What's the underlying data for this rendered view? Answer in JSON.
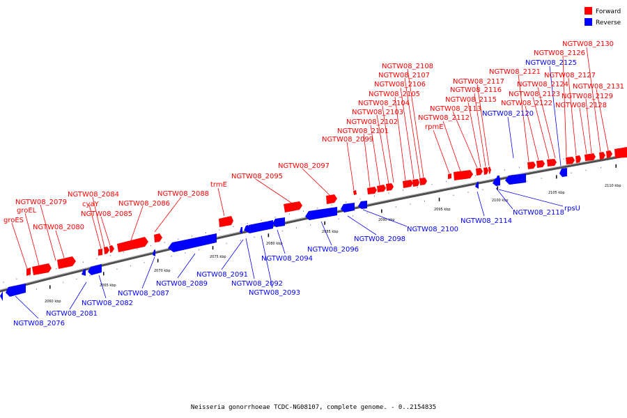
{
  "legend": [
    {
      "label": "Forward",
      "color": "#ff0000"
    },
    {
      "label": "Reverse",
      "color": "#0000ff"
    }
  ],
  "caption": "Neisseria gonorrhoeae TCDC-NG08107, complete genome. - 0..2154835",
  "colors": {
    "forward": "#ff0000",
    "reverse": "#0000ff",
    "backbone": "#808080"
  },
  "ticks": [
    "2060 kbp",
    "2065 kbp",
    "2070 kbp",
    "2075 kbp",
    "2080 kbp",
    "2085 kbp",
    "2090 kbp",
    "2095 kbp",
    "2100 kbp",
    "2105 kbp",
    "2110 kbp"
  ],
  "labels_forward": [
    "groES",
    "groEL",
    "NGTW08_2079",
    "NGTW08_2080",
    "cyaY",
    "NGTW08_2084",
    "NGTW08_2085",
    "NGTW08_2086",
    "NGTW08_2088",
    "trmE",
    "NGTW08_2095",
    "NGTW08_2097",
    "NGTW08_2099",
    "NGTW08_2101",
    "NGTW08_2102",
    "NGTW08_2103",
    "NGTW08_2104",
    "NGTW08_2105",
    "NGTW08_2106",
    "NGTW08_2107",
    "NGTW08_2108",
    "rpmE",
    "NGTW08_2112",
    "NGTW08_2113",
    "NGTW08_2115",
    "NGTW08_2116",
    "NGTW08_2117",
    "NGTW08_2121",
    "NGTW08_2122",
    "NGTW08_2123",
    "NGTW08_2124",
    "NGTW08_2126",
    "NGTW08_2127",
    "NGTW08_2128",
    "NGTW08_2129",
    "NGTW08_2130",
    "NGTW08_2131"
  ],
  "labels_reverse": [
    "NGTW08_2076",
    "NGTW08_2081",
    "NGTW08_2082",
    "NGTW08_2087",
    "NGTW08_2089",
    "NGTW08_2091",
    "NGTW08_2092",
    "NGTW08_2093",
    "NGTW08_2094",
    "NGTW08_2096",
    "NGTW08_2098",
    "NGTW08_2100",
    "NGTW08_2114",
    "NGTW08_2118",
    "rpsU",
    "NGTW08_2120",
    "NGTW08_2125"
  ]
}
